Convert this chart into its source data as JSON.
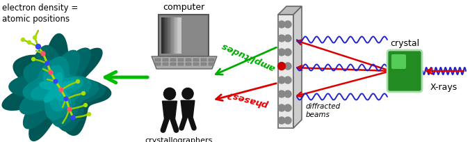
{
  "bg_color": "#ffffff",
  "fig_width": 6.76,
  "fig_height": 2.05,
  "dpi": 100,
  "text_electron_density": "electron density =\natomic positions",
  "text_computer": "computer",
  "text_crystallographers": "crystallographers",
  "text_amplitudes": "amplitudes",
  "text_phases": "phases?",
  "text_diffracted": "diffracted\nbeams",
  "text_crystal": "crystal",
  "text_xrays": "X-rays",
  "green_color": "#00aa00",
  "red_color": "#dd0000",
  "blue_color": "#2222cc",
  "arrow_green": "#00bb00",
  "crystal_green": "#228b22",
  "crystal_highlight": "#55cc55",
  "panel_face": "#e8e8e8",
  "panel_side_top": "#cccccc",
  "panel_side_right": "#d8d8d8",
  "dot_color": "#888888",
  "screen_dark": "#333333",
  "screen_mid": "#888888",
  "screen_light": "#cccccc",
  "keyboard_color": "#aaaaaa",
  "person_color": "#111111"
}
